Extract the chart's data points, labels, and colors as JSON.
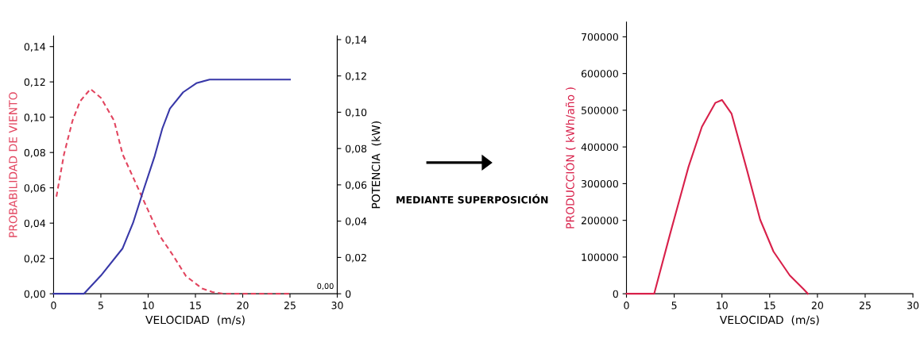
{
  "chart_data": [
    {
      "type": "line",
      "xlabel": "VELOCIDAD  (m/s)",
      "ylabel": "PROBABILIDAD DE VIENTO",
      "y2label": "POTENCIA  (kW)",
      "xlim": [
        0,
        30
      ],
      "xticks": [
        0,
        5,
        10,
        15,
        20,
        25,
        30
      ],
      "ylim": [
        0,
        0.146
      ],
      "yticks": [
        {
          "value": 0,
          "label": "0,00"
        },
        {
          "value": 0.02,
          "label": "0,02"
        },
        {
          "value": 0.04,
          "label": "0,04"
        },
        {
          "value": 0.06,
          "label": "0,06"
        },
        {
          "value": 0.08,
          "label": "0,08"
        },
        {
          "value": 0.1,
          "label": "0,10"
        },
        {
          "value": 0.12,
          "label": "0,12"
        },
        {
          "value": 0.14,
          "label": "0,14"
        }
      ],
      "y2lim": [
        0,
        0.142
      ],
      "y2ticks": [
        0,
        {
          "value": 0.02,
          "label": "0,02"
        },
        {
          "value": 0.04,
          "label": "0,04"
        },
        {
          "value": 0.06,
          "label": "0,06"
        },
        {
          "value": 0.08,
          "label": "0,08"
        },
        {
          "value": 0.1,
          "label": "0,10"
        },
        {
          "value": 0.12,
          "label": "0,12"
        },
        {
          "value": 0.14,
          "label": "0,14"
        }
      ],
      "grid": false,
      "marker": "none",
      "annotations": [
        "0,00",
        "MEDIANTE SUPERPOSICIÓN"
      ],
      "series": [
        {
          "color": "#e2455f",
          "line_style": "dashed",
          "x": [
            0.3,
            1.1,
            2.0,
            2.8,
            3.9,
            5.0,
            6.4,
            7.3,
            9.0,
            10.1,
            11.2,
            12.6,
            14.0,
            15.7,
            16.8,
            18,
            20,
            22,
            25
          ],
          "values": [
            0.055,
            0.079,
            0.098,
            0.109,
            0.116,
            0.111,
            0.098,
            0.079,
            0.059,
            0.046,
            0.033,
            0.022,
            0.01,
            0.003,
            0.001,
            0,
            0,
            0,
            0
          ]
        },
        {
          "color": "#3838a8",
          "line_style": "solid",
          "axis": "y2",
          "x": [
            0,
            3.2,
            5.0,
            7.3,
            8.4,
            9.5,
            10.7,
            11.5,
            12.3,
            13.7,
            15.1,
            16.5,
            25
          ],
          "values": [
            0,
            0,
            0.01,
            0.025,
            0.039,
            0.057,
            0.076,
            0.091,
            0.102,
            0.111,
            0.116,
            0.118,
            0.118
          ]
        }
      ]
    },
    {
      "type": "line",
      "xlabel": "VELOCIDAD  (m/s)",
      "ylabel": "PRODUCCIÓN ( kWh/año )",
      "xlim": [
        0,
        30
      ],
      "xticks": [
        0,
        5,
        10,
        15,
        20,
        25,
        30
      ],
      "ylim": [
        0,
        740000
      ],
      "yticks": [
        0,
        100000,
        200000,
        300000,
        400000,
        500000,
        600000,
        700000
      ],
      "grid": false,
      "marker": "none",
      "series": [
        {
          "color": "#d8204a",
          "line_style": "solid",
          "x": [
            0,
            2.9,
            4.6,
            6.5,
            7.9,
            9.3,
            10.0,
            11.0,
            12.6,
            14.0,
            15.4,
            17.1,
            18.5,
            19.0
          ],
          "values": [
            0,
            0,
            166000,
            346000,
            455000,
            520000,
            528000,
            491000,
            339000,
            202000,
            115000,
            50000,
            14000,
            0
          ]
        }
      ]
    }
  ]
}
